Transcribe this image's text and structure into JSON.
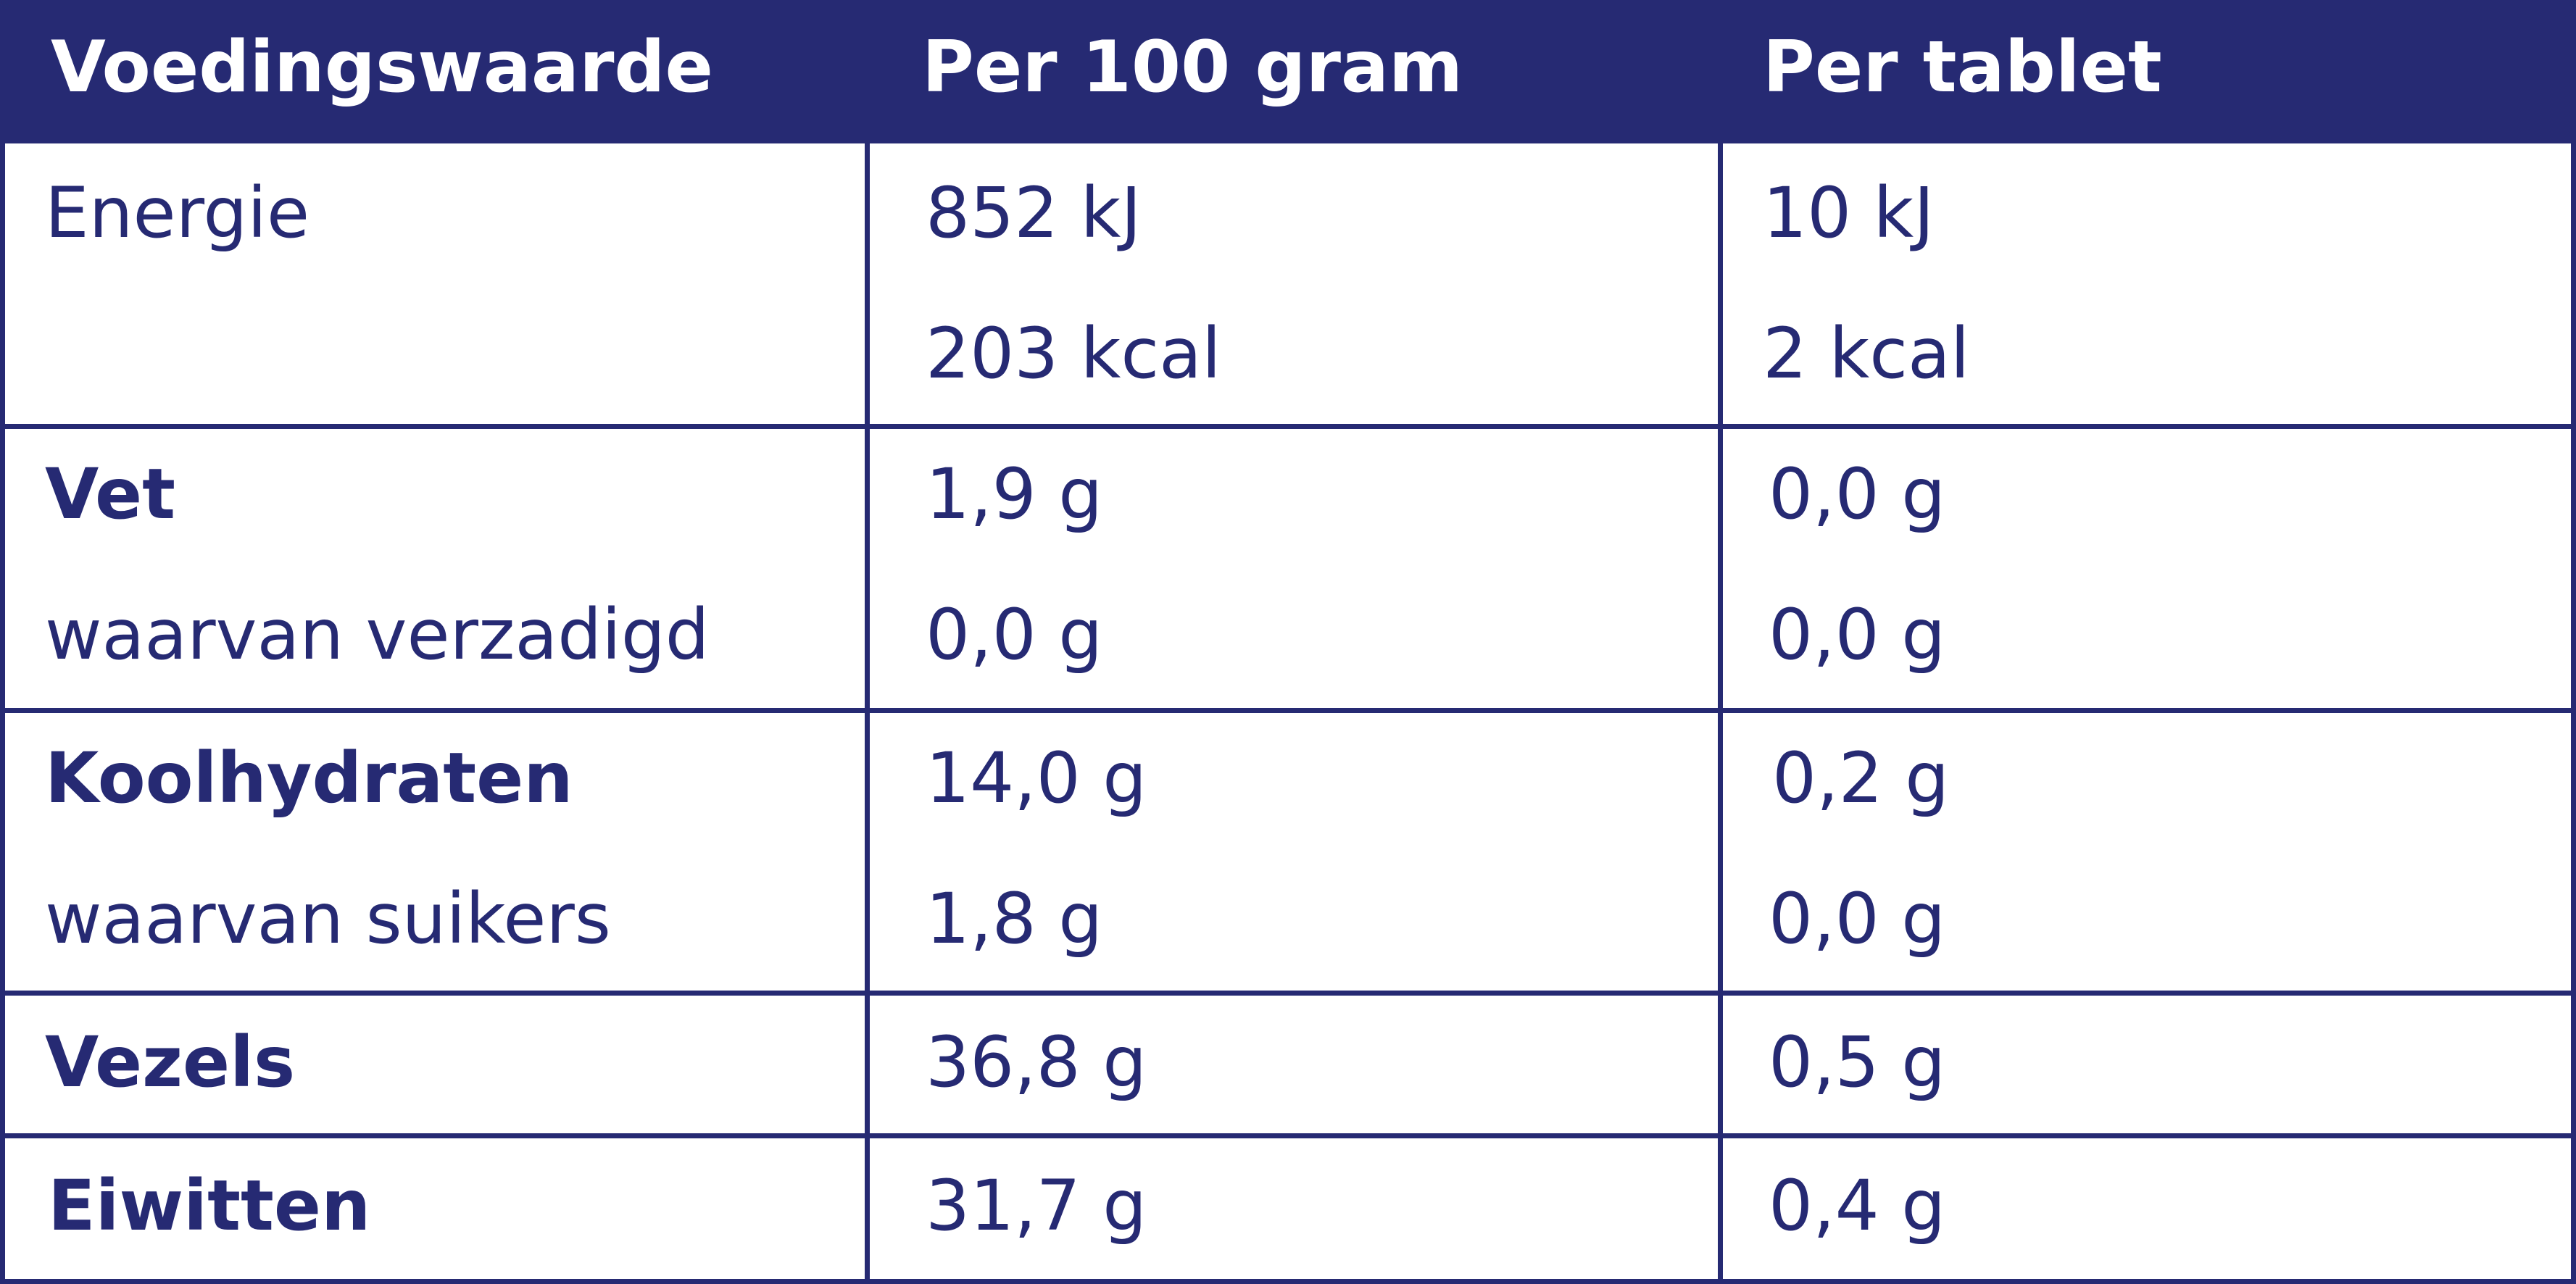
{
  "header": {
    "col1": "Voedingswaarde",
    "col2": "Per 100 gram",
    "col3": "Per tablet"
  },
  "rows": [
    {
      "label": "Energie",
      "per100": "852 kJ",
      "tablet": "10 kJ",
      "bold": false
    },
    {
      "label": "",
      "per100": "203 kcal",
      "tablet": "2 kcal",
      "bold": false
    },
    {
      "label": "Vet",
      "per100": "1,9 g",
      "tablet": "0,0 g",
      "bold": true
    },
    {
      "label": "waarvan verzadigd",
      "per100": "0,0 g",
      "tablet": "0,0 g",
      "bold": false
    },
    {
      "label": "Koolhydraten",
      "per100": "14,0 g",
      "tablet": "0,2 g",
      "bold": true
    },
    {
      "label": "waarvan suikers",
      "per100": "1,8 g",
      "tablet": "0,0 g",
      "bold": false
    },
    {
      "label": "Vezels",
      "per100": "36,8 g",
      "tablet": "0,5 g",
      "bold": true
    },
    {
      "label": "Eiwitten",
      "per100": "31,7 g",
      "tablet": "0,4 g",
      "bold": true
    }
  ],
  "colors": {
    "navy": "#262a73",
    "white": "#ffffff"
  }
}
